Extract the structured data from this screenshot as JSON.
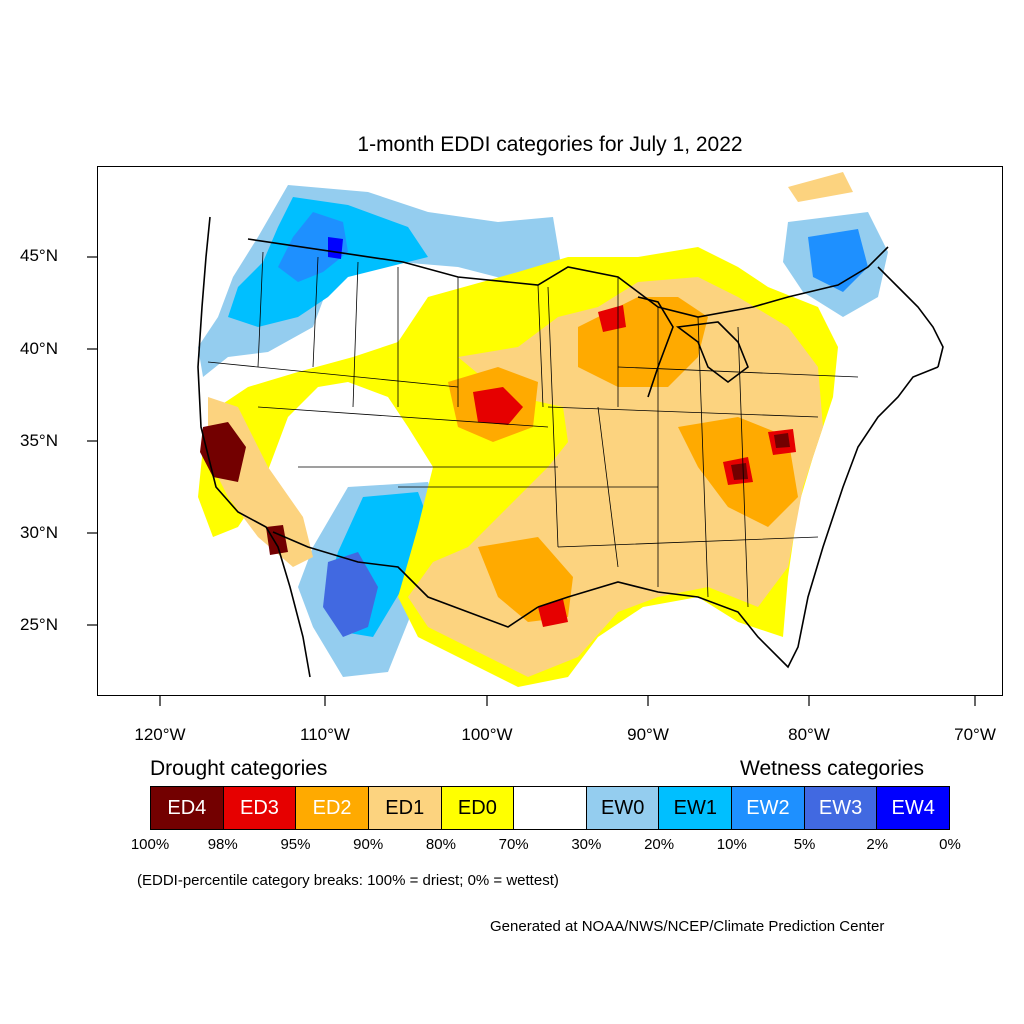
{
  "title": "1-month EDDI categories for July 1, 2022",
  "lat_labels": [
    "45°N",
    "40°N",
    "35°N",
    "30°N",
    "25°N"
  ],
  "lon_labels": [
    "120°W",
    "110°W",
    "100°W",
    "90°W",
    "80°W",
    "70°W"
  ],
  "legend": {
    "drought_heading": "Drought categories",
    "wetness_heading": "Wetness categories",
    "categories": [
      {
        "label": "ED4",
        "color": "#730000",
        "text_color": "#ffffff"
      },
      {
        "label": "ED3",
        "color": "#e60000",
        "text_color": "#ffffff"
      },
      {
        "label": "ED2",
        "color": "#ffaa00",
        "text_color": "#ffffff"
      },
      {
        "label": "ED1",
        "color": "#fcd37f",
        "text_color": "#000000"
      },
      {
        "label": "ED0",
        "color": "#ffff00",
        "text_color": "#000000"
      },
      {
        "label": "",
        "color": "#ffffff",
        "text_color": "#000000"
      },
      {
        "label": "EW0",
        "color": "#94cdef",
        "text_color": "#000000"
      },
      {
        "label": "EW1",
        "color": "#00bfff",
        "text_color": "#000000"
      },
      {
        "label": "EW2",
        "color": "#1e90ff",
        "text_color": "#ffffff"
      },
      {
        "label": "EW3",
        "color": "#4169e1",
        "text_color": "#ffffff"
      },
      {
        "label": "EW4",
        "color": "#0000ff",
        "text_color": "#ffffff"
      }
    ],
    "percentiles": [
      "100%",
      "98%",
      "95%",
      "90%",
      "80%",
      "70%",
      "30%",
      "20%",
      "10%",
      "5%",
      "2%",
      "0%"
    ]
  },
  "note": "(EDDI-percentile category breaks: 100% = driest; 0% = wettest)",
  "credit": "Generated at NOAA/NWS/NCEP/Climate Prediction Center"
}
